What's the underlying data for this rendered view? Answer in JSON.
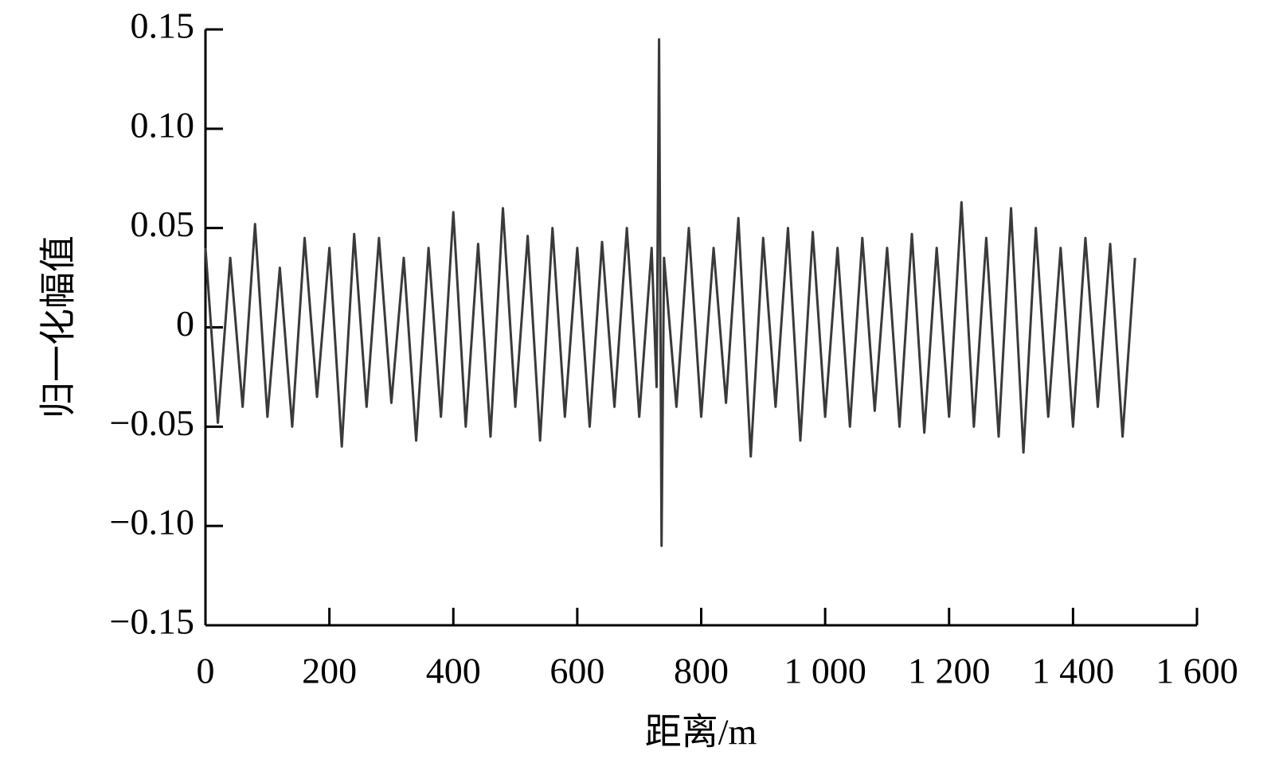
{
  "chart_data": {
    "type": "line",
    "xlabel": "距离/m",
    "ylabel": "归一化幅值",
    "x": [
      0,
      20,
      40,
      60,
      80,
      100,
      120,
      140,
      160,
      180,
      200,
      220,
      240,
      260,
      280,
      300,
      320,
      340,
      360,
      380,
      400,
      420,
      440,
      460,
      480,
      500,
      520,
      540,
      560,
      580,
      600,
      620,
      640,
      660,
      680,
      700,
      720,
      728,
      732,
      736,
      740,
      760,
      780,
      800,
      820,
      840,
      860,
      880,
      900,
      920,
      940,
      960,
      980,
      1000,
      1020,
      1040,
      1060,
      1080,
      1100,
      1120,
      1140,
      1160,
      1180,
      1200,
      1220,
      1240,
      1260,
      1280,
      1300,
      1320,
      1340,
      1360,
      1380,
      1400,
      1420,
      1440,
      1460,
      1480,
      1500
    ],
    "series": [
      {
        "color": "#3a3a3a",
        "values": [
          0.04,
          -0.048,
          0.035,
          -0.04,
          0.052,
          -0.045,
          0.03,
          -0.05,
          0.045,
          -0.035,
          0.04,
          -0.06,
          0.047,
          -0.04,
          0.045,
          -0.038,
          0.035,
          -0.057,
          0.04,
          -0.045,
          0.058,
          -0.05,
          0.042,
          -0.055,
          0.06,
          -0.04,
          0.046,
          -0.057,
          0.05,
          -0.045,
          0.04,
          -0.05,
          0.043,
          -0.04,
          0.05,
          -0.045,
          0.04,
          -0.03,
          0.145,
          -0.11,
          0.035,
          -0.04,
          0.05,
          -0.045,
          0.04,
          -0.038,
          0.055,
          -0.065,
          0.045,
          -0.04,
          0.05,
          -0.057,
          0.048,
          -0.045,
          0.04,
          -0.05,
          0.045,
          -0.042,
          0.04,
          -0.05,
          0.047,
          -0.053,
          0.04,
          -0.045,
          0.063,
          -0.05,
          0.045,
          -0.055,
          0.06,
          -0.063,
          0.05,
          -0.045,
          0.04,
          -0.05,
          0.045,
          -0.04,
          0.042,
          -0.055,
          0.035
        ]
      }
    ],
    "xlim": [
      0,
      1600
    ],
    "xticks": [
      0,
      200,
      400,
      600,
      800,
      {
        "value": 1000,
        "label": "1 000"
      },
      {
        "value": 1200,
        "label": "1 200"
      },
      {
        "value": 1400,
        "label": "1 400"
      },
      {
        "value": 1600,
        "label": "1 600"
      }
    ],
    "ylim": [
      -0.15,
      0.15
    ],
    "yticks": [
      {
        "value": -0.15,
        "label": "−0.15"
      },
      {
        "value": -0.1,
        "label": "−0.10"
      },
      {
        "value": -0.05,
        "label": "−0.05"
      },
      0,
      0.05,
      {
        "value": 0.1,
        "label": "0.10"
      },
      0.15
    ],
    "grid": false
  }
}
